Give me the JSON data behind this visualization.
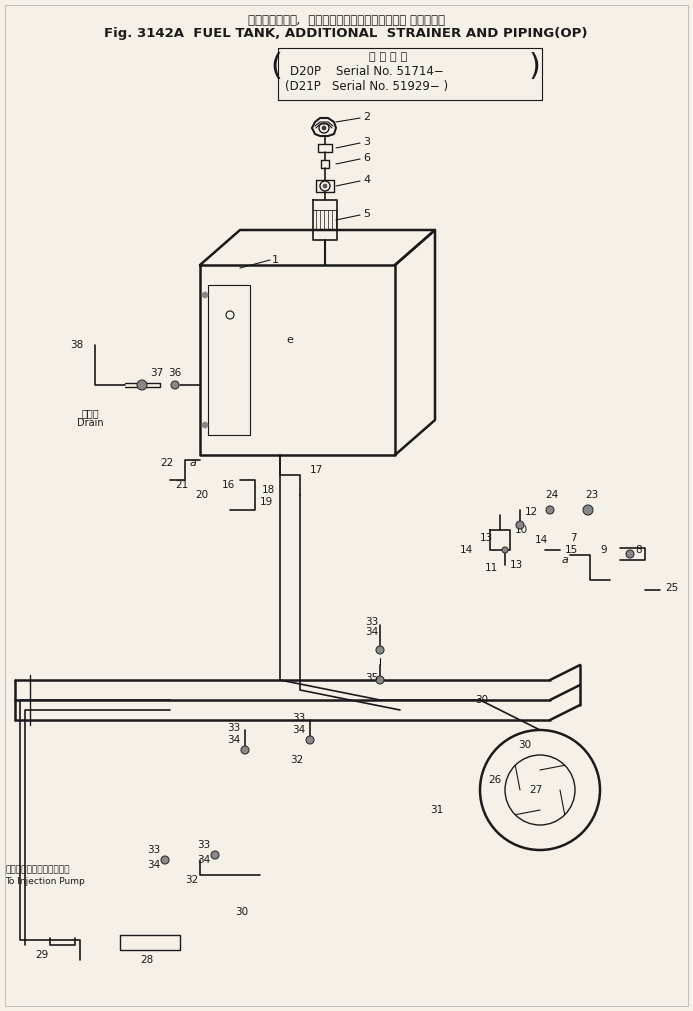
{
  "title_jp": "フュエルタンク,  増　　設　　ストレーナおよび バイピング",
  "title_en": "Fig. 3142A  FUEL TANK, ADDITIONAL  STRAINER AND PIPING(OP)",
  "serial_label": "適 用 号 機",
  "serial_d20p": "D20P    Serial No. 51714−",
  "serial_d21p": "(D21P   Serial No. 51929− )",
  "bg_color": "#f5f0e8",
  "line_color": "#1a1a1a",
  "text_color": "#1a1a1a",
  "label_drain_jp": "ドレン",
  "label_drain_en": "Drain",
  "label_injection_jp": "インジェクションポンプへ",
  "label_injection_en": "To Injection Pump"
}
